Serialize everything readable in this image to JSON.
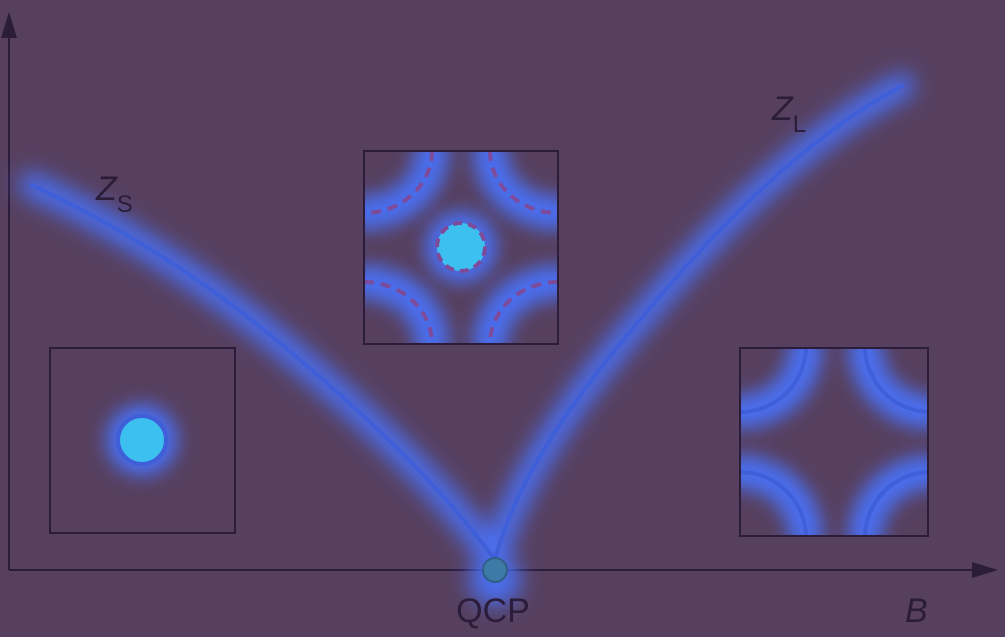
{
  "colors": {
    "background": "#57405f",
    "frame": "#2b1c3a",
    "curve": "#3f5fd9",
    "glow": "#4a73ff",
    "bright_fill": "#3cc0f0",
    "dashed": "#7e4a9a"
  },
  "labels": {
    "zs_main": "Z",
    "zs_sub": "S",
    "zl_main": "Z",
    "zl_sub": "L",
    "qcp": "QCP",
    "b_axis": "B"
  }
}
